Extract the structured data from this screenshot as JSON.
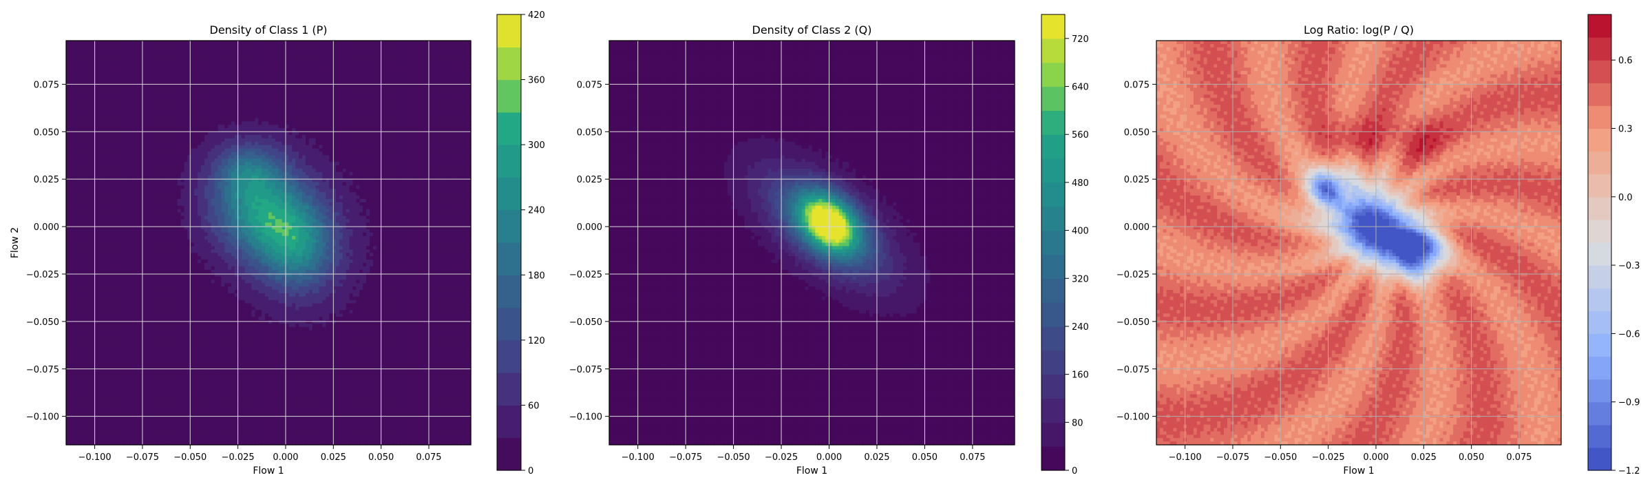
{
  "chart_data": [
    {
      "type": "heatmap",
      "title": "Density of Class 1 (P)",
      "xlabel": "Flow 1",
      "ylabel": "Flow 2",
      "xlim": [
        -0.115,
        0.097
      ],
      "ylim": [
        -0.115,
        0.098
      ],
      "xticks": [
        "−0.100",
        "−0.075",
        "−0.050",
        "−0.025",
        "0.000",
        "0.025",
        "0.050",
        "0.075"
      ],
      "xtick_values": [
        -0.1,
        -0.075,
        -0.05,
        -0.025,
        0.0,
        0.025,
        0.05,
        0.075
      ],
      "yticks": [
        "−0.100",
        "−0.075",
        "−0.050",
        "−0.025",
        "0.000",
        "0.025",
        "0.050",
        "0.075"
      ],
      "ytick_values": [
        -0.1,
        -0.075,
        -0.05,
        -0.025,
        0.0,
        0.025,
        0.05,
        0.075
      ],
      "grid": true,
      "colormap": "viridis",
      "colorbar": {
        "min": 0,
        "max": 420,
        "levels": 14,
        "ticks": [
          0,
          60,
          120,
          180,
          240,
          300,
          360,
          420
        ],
        "tick_labels": [
          "0",
          "60",
          "120",
          "180",
          "240",
          "300",
          "360",
          "420"
        ]
      },
      "peaks": [
        {
          "x": -0.012,
          "y": 0.008,
          "value": 290
        },
        {
          "x": 0.006,
          "y": -0.012,
          "value": 230
        },
        {
          "x": -0.02,
          "y": 0.03,
          "value": 180
        }
      ]
    },
    {
      "type": "heatmap",
      "title": "Density of Class 2 (Q)",
      "xlabel": "Flow 1",
      "ylabel": "",
      "xlim": [
        -0.115,
        0.097
      ],
      "ylim": [
        -0.115,
        0.098
      ],
      "xticks": [
        "−0.100",
        "−0.075",
        "−0.050",
        "−0.025",
        "0.000",
        "0.025",
        "0.050",
        "0.075"
      ],
      "xtick_values": [
        -0.1,
        -0.075,
        -0.05,
        -0.025,
        0.0,
        0.025,
        0.05,
        0.075
      ],
      "yticks": [
        "−0.100",
        "−0.075",
        "−0.050",
        "−0.025",
        "0.000",
        "0.025",
        "0.050",
        "0.075"
      ],
      "ytick_values": [
        -0.1,
        -0.075,
        -0.05,
        -0.025,
        0.0,
        0.025,
        0.05,
        0.075
      ],
      "grid": true,
      "colormap": "viridis",
      "colorbar": {
        "min": 0,
        "max": 760,
        "levels": 19,
        "ticks": [
          0,
          80,
          160,
          240,
          320,
          400,
          480,
          560,
          640,
          720
        ],
        "tick_labels": [
          "0",
          "80",
          "160",
          "240",
          "320",
          "400",
          "480",
          "560",
          "640",
          "720"
        ]
      },
      "peaks": [
        {
          "x": 0.0,
          "y": 0.002,
          "value": 700
        },
        {
          "x": -0.015,
          "y": 0.012,
          "value": 380
        },
        {
          "x": 0.012,
          "y": -0.015,
          "value": 380
        }
      ]
    },
    {
      "type": "heatmap",
      "title": "Log Ratio: log(P / Q)",
      "xlabel": "Flow 1",
      "ylabel": "",
      "xlim": [
        -0.115,
        0.097
      ],
      "ylim": [
        -0.115,
        0.098
      ],
      "xticks": [
        "−0.100",
        "−0.075",
        "−0.050",
        "−0.025",
        "0.000",
        "0.025",
        "0.050",
        "0.075"
      ],
      "xtick_values": [
        -0.1,
        -0.075,
        -0.05,
        -0.025,
        0.0,
        0.025,
        0.05,
        0.075
      ],
      "yticks": [
        "−0.100",
        "−0.075",
        "−0.050",
        "−0.025",
        "0.000",
        "0.025",
        "0.050",
        "0.075"
      ],
      "ytick_values": [
        -0.1,
        -0.075,
        -0.05,
        -0.025,
        0.0,
        0.025,
        0.05,
        0.075
      ],
      "grid": true,
      "colormap": "coolwarm",
      "colorbar": {
        "min": -1.2,
        "max": 0.8,
        "levels": 20,
        "ticks": [
          -1.2,
          -0.9,
          -0.6,
          -0.3,
          0.0,
          0.3,
          0.6
        ],
        "tick_labels": [
          "−1.2",
          "−0.9",
          "−0.6",
          "−0.3",
          "0.0",
          "0.3",
          "0.6"
        ]
      },
      "background_value": 0.42,
      "features": [
        {
          "x": 0.0,
          "y": -0.002,
          "value": -0.95
        },
        {
          "x": 0.022,
          "y": -0.013,
          "value": -1.05
        },
        {
          "x": -0.026,
          "y": 0.021,
          "value": -0.55
        },
        {
          "x": -0.012,
          "y": 0.01,
          "value": -0.2
        },
        {
          "x": -0.012,
          "y": 0.046,
          "value": 0.65
        },
        {
          "x": 0.02,
          "y": 0.046,
          "value": 0.6
        }
      ]
    }
  ]
}
